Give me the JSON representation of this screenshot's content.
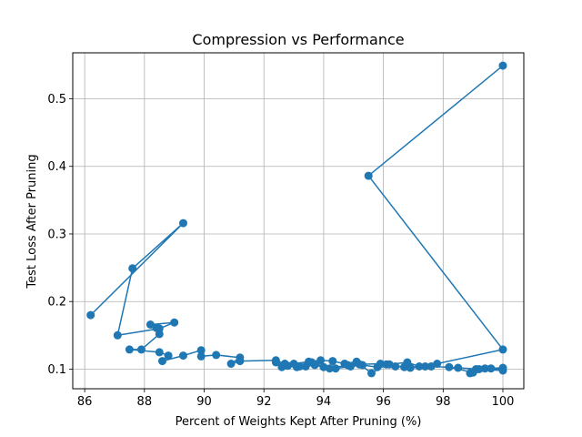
{
  "chart_data": {
    "type": "line",
    "title": "Compression vs Performance",
    "xlabel": "Percent of Weights Kept After Pruning (%)",
    "ylabel": "Test Loss After Pruning",
    "xlim": [
      85.6,
      100.7
    ],
    "ylim": [
      0.071,
      0.568
    ],
    "xticks": [
      86,
      88,
      90,
      92,
      94,
      96,
      98,
      100
    ],
    "yticks": [
      0.1,
      0.2,
      0.3,
      0.4,
      0.5
    ],
    "xtick_labels": [
      "86",
      "88",
      "90",
      "92",
      "94",
      "96",
      "98",
      "100"
    ],
    "ytick_labels": [
      "0.1",
      "0.2",
      "0.3",
      "0.4",
      "0.5"
    ],
    "grid": true,
    "color": "#1f77b4",
    "marker": "circle",
    "series": [
      {
        "x": [
          100.0,
          95.5,
          100.0,
          97.8,
          97.2,
          96.8,
          96.2,
          95.8,
          95.3,
          94.9,
          94.4,
          94.0,
          93.7,
          93.4,
          93.1,
          92.8,
          92.4,
          92.6,
          93.0,
          93.5,
          93.9,
          94.3,
          94.7,
          95.1,
          95.6,
          96.1,
          96.7,
          97.4,
          98.2,
          99.0,
          100.0,
          99.4,
          98.9,
          99.1,
          99.6,
          100.0,
          99.2,
          98.5,
          97.6,
          96.9,
          96.4,
          95.9,
          95.2,
          94.8,
          94.2,
          93.6,
          93.2,
          92.7,
          92.4,
          91.2,
          90.9,
          91.2,
          90.4,
          89.9,
          89.9,
          89.3,
          88.6,
          88.8,
          88.5,
          87.5,
          87.9,
          88.5,
          88.4,
          88.2,
          89.0,
          88.5,
          87.1,
          87.6,
          89.3,
          86.2
        ],
        "y": [
          0.549,
          0.386,
          0.129,
          0.108,
          0.104,
          0.11,
          0.107,
          0.103,
          0.106,
          0.104,
          0.101,
          0.103,
          0.106,
          0.104,
          0.103,
          0.105,
          0.11,
          0.103,
          0.108,
          0.111,
          0.113,
          0.112,
          0.108,
          0.111,
          0.094,
          0.107,
          0.103,
          0.104,
          0.103,
          0.095,
          0.102,
          0.101,
          0.094,
          0.1,
          0.101,
          0.098,
          0.1,
          0.102,
          0.104,
          0.102,
          0.104,
          0.108,
          0.107,
          0.106,
          0.101,
          0.11,
          0.104,
          0.108,
          0.113,
          0.112,
          0.108,
          0.117,
          0.121,
          0.119,
          0.128,
          0.12,
          0.112,
          0.12,
          0.125,
          0.129,
          0.129,
          0.152,
          0.161,
          0.166,
          0.169,
          0.16,
          0.15,
          0.249,
          0.316,
          0.18
        ]
      }
    ]
  }
}
